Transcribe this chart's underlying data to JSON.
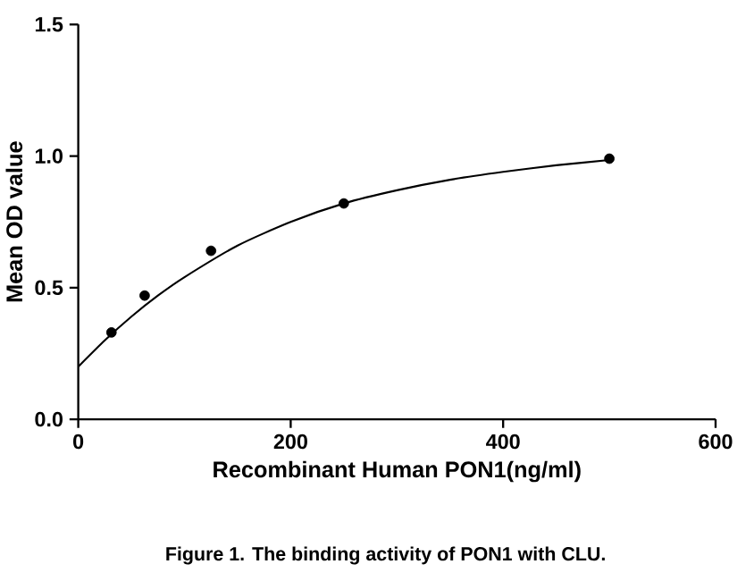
{
  "chart_data": {
    "type": "scatter",
    "xlabel": "Recombinant Human PON1(ng/ml)",
    "ylabel": "Mean OD value",
    "annotations": [
      "Figure 1. The binding activity of PON1 with CLU."
    ],
    "xlim": [
      0,
      600
    ],
    "ylim": [
      0,
      1.5
    ],
    "xticks": [
      0,
      200,
      400,
      600
    ],
    "yticks": [
      {
        "value": 0,
        "label": "0.0"
      },
      {
        "value": 0.5,
        "label": "0.5"
      },
      {
        "value": 1.0,
        "label": "1.0"
      },
      {
        "value": 1.5,
        "label": "1.5"
      }
    ],
    "grid": false,
    "series": [
      {
        "color": "#000000",
        "marker": "circle",
        "x": [
          31.25,
          62.5,
          125,
          250,
          500
        ],
        "values": [
          0.33,
          0.47,
          0.64,
          0.82,
          0.99
        ]
      },
      {
        "type": "line",
        "color": "#000000",
        "marker": "none",
        "line_style": "solid",
        "x": [
          0,
          25,
          50,
          75,
          100,
          150,
          200,
          250,
          300,
          350,
          400,
          450,
          500
        ],
        "values": [
          0.2,
          0.3,
          0.39,
          0.47,
          0.54,
          0.66,
          0.75,
          0.82,
          0.87,
          0.91,
          0.94,
          0.965,
          0.985
        ]
      }
    ]
  }
}
